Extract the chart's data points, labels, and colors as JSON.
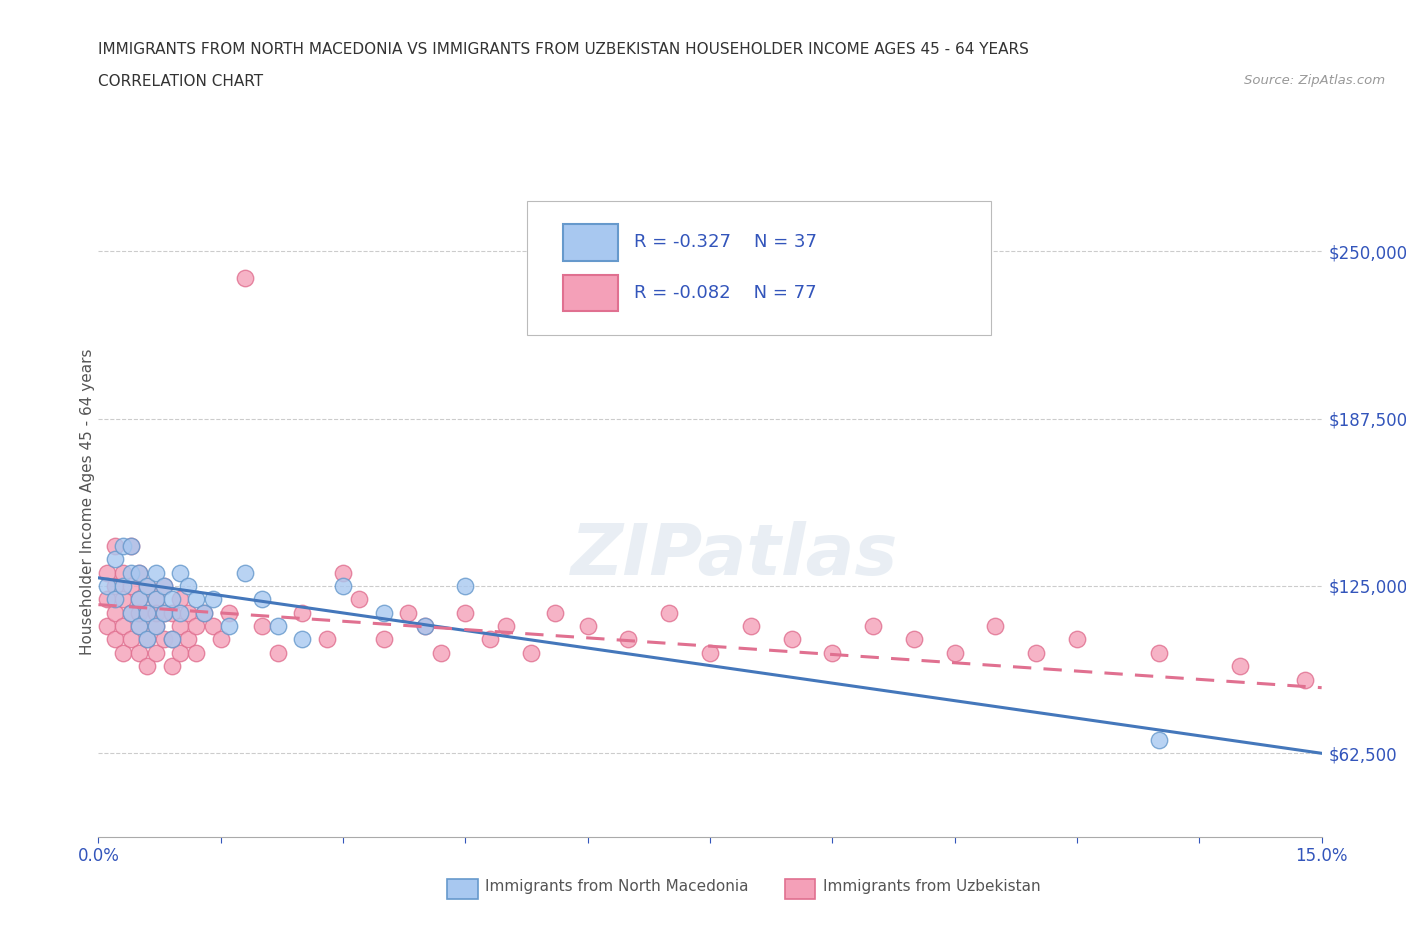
{
  "title_line1": "IMMIGRANTS FROM NORTH MACEDONIA VS IMMIGRANTS FROM UZBEKISTAN HOUSEHOLDER INCOME AGES 45 - 64 YEARS",
  "title_line2": "CORRELATION CHART",
  "source_text": "Source: ZipAtlas.com",
  "ylabel": "Householder Income Ages 45 - 64 years",
  "xlim": [
    0.0,
    0.15
  ],
  "ylim": [
    31250,
    281250
  ],
  "x_ticks": [
    0.0,
    0.015,
    0.03,
    0.045,
    0.06,
    0.075,
    0.09,
    0.105,
    0.12,
    0.135,
    0.15
  ],
  "x_tick_labels": [
    "0.0%",
    "",
    "",
    "",
    "",
    "",
    "",
    "",
    "",
    "",
    "15.0%"
  ],
  "y_ticks": [
    62500,
    125000,
    187500,
    250000
  ],
  "y_tick_labels": [
    "$62,500",
    "$125,000",
    "$187,500",
    "$250,000"
  ],
  "macedonia_R": -0.327,
  "macedonia_N": 37,
  "uzbekistan_R": -0.082,
  "uzbekistan_N": 77,
  "macedonia_color": "#A8C8F0",
  "uzbekistan_color": "#F4A0B8",
  "macedonia_edge_color": "#6699CC",
  "uzbekistan_edge_color": "#E07090",
  "macedonia_line_color": "#4477BB",
  "uzbekistan_line_color": "#E07090",
  "legend_text_color": "#3355BB",
  "watermark": "ZIPatlas",
  "macedonia_scatter_x": [
    0.001,
    0.002,
    0.002,
    0.003,
    0.003,
    0.004,
    0.004,
    0.004,
    0.005,
    0.005,
    0.005,
    0.006,
    0.006,
    0.006,
    0.007,
    0.007,
    0.007,
    0.008,
    0.008,
    0.009,
    0.009,
    0.01,
    0.01,
    0.011,
    0.012,
    0.013,
    0.014,
    0.016,
    0.018,
    0.02,
    0.022,
    0.025,
    0.03,
    0.035,
    0.04,
    0.045,
    0.13
  ],
  "macedonia_scatter_y": [
    125000,
    135000,
    120000,
    140000,
    125000,
    130000,
    115000,
    140000,
    120000,
    130000,
    110000,
    125000,
    115000,
    105000,
    130000,
    120000,
    110000,
    125000,
    115000,
    120000,
    105000,
    130000,
    115000,
    125000,
    120000,
    115000,
    120000,
    110000,
    130000,
    120000,
    110000,
    105000,
    125000,
    115000,
    110000,
    125000,
    67500
  ],
  "uzbekistan_scatter_x": [
    0.001,
    0.001,
    0.001,
    0.002,
    0.002,
    0.002,
    0.002,
    0.003,
    0.003,
    0.003,
    0.003,
    0.004,
    0.004,
    0.004,
    0.004,
    0.005,
    0.005,
    0.005,
    0.005,
    0.005,
    0.006,
    0.006,
    0.006,
    0.006,
    0.007,
    0.007,
    0.007,
    0.007,
    0.008,
    0.008,
    0.008,
    0.009,
    0.009,
    0.009,
    0.01,
    0.01,
    0.01,
    0.011,
    0.011,
    0.012,
    0.012,
    0.013,
    0.014,
    0.015,
    0.016,
    0.018,
    0.02,
    0.022,
    0.025,
    0.028,
    0.03,
    0.032,
    0.035,
    0.038,
    0.04,
    0.042,
    0.045,
    0.048,
    0.05,
    0.053,
    0.056,
    0.06,
    0.065,
    0.07,
    0.075,
    0.08,
    0.085,
    0.09,
    0.095,
    0.1,
    0.105,
    0.11,
    0.115,
    0.12,
    0.13,
    0.14,
    0.148
  ],
  "uzbekistan_scatter_y": [
    130000,
    120000,
    110000,
    140000,
    125000,
    115000,
    105000,
    130000,
    120000,
    110000,
    100000,
    125000,
    115000,
    105000,
    140000,
    120000,
    110000,
    100000,
    130000,
    115000,
    125000,
    115000,
    105000,
    95000,
    120000,
    110000,
    100000,
    115000,
    115000,
    105000,
    125000,
    115000,
    105000,
    95000,
    110000,
    120000,
    100000,
    115000,
    105000,
    110000,
    100000,
    115000,
    110000,
    105000,
    115000,
    240000,
    110000,
    100000,
    115000,
    105000,
    130000,
    120000,
    105000,
    115000,
    110000,
    100000,
    115000,
    105000,
    110000,
    100000,
    115000,
    110000,
    105000,
    115000,
    100000,
    110000,
    105000,
    100000,
    110000,
    105000,
    100000,
    110000,
    100000,
    105000,
    100000,
    95000,
    90000
  ],
  "mac_line_x": [
    0.0,
    0.15
  ],
  "mac_line_y": [
    128000,
    62500
  ],
  "uzb_line_x": [
    0.0,
    0.15
  ],
  "uzb_line_y": [
    118000,
    87000
  ]
}
